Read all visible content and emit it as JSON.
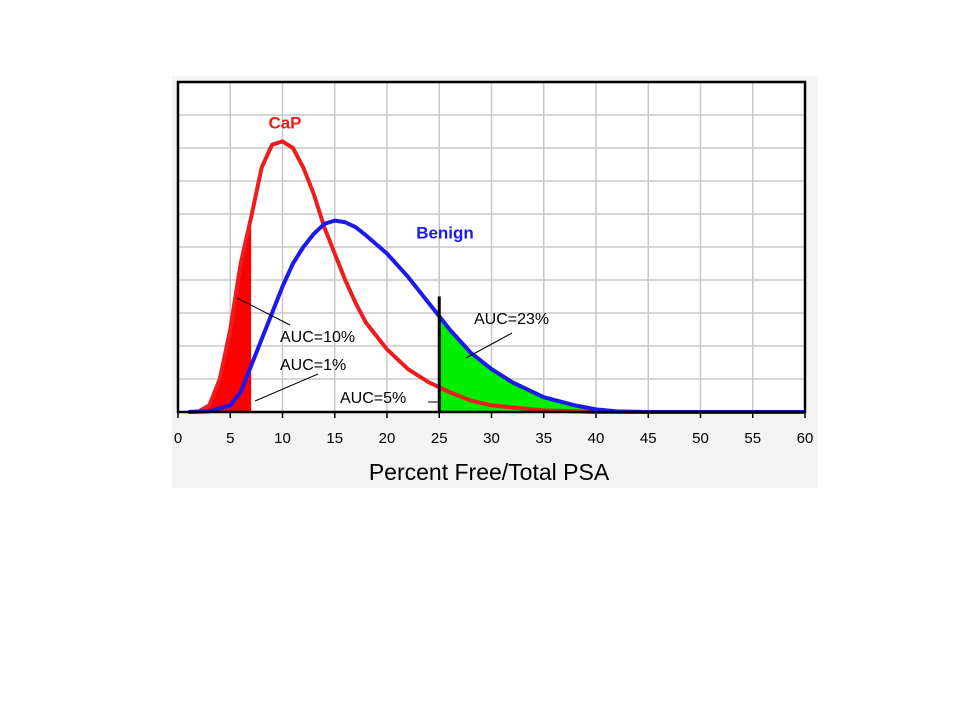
{
  "chart_data": {
    "type": "line",
    "xlabel": "Percent Free/Total PSA",
    "xlim": [
      0,
      60
    ],
    "xticks": [
      0,
      5,
      10,
      15,
      20,
      25,
      30,
      35,
      40,
      45,
      50,
      55,
      60
    ],
    "ylim": [
      0,
      10
    ],
    "grid": true,
    "cutoff": {
      "x": 25,
      "height": 3.5
    },
    "series": [
      {
        "name": "CaP",
        "color": "#ee1c1c",
        "fill": "#ff0000",
        "fill_range": [
          1,
          7
        ],
        "x": [
          1,
          2,
          3,
          4,
          5,
          6,
          7,
          8,
          9,
          10,
          11,
          12,
          13,
          14,
          15,
          16,
          17,
          18,
          20,
          22,
          24,
          26,
          28,
          30,
          35,
          40,
          60
        ],
        "values": [
          0,
          0.02,
          0.2,
          1,
          2.5,
          4.5,
          5.9,
          7.4,
          8.1,
          8.2,
          8.0,
          7.4,
          6.6,
          5.6,
          4.8,
          4.0,
          3.3,
          2.7,
          1.9,
          1.3,
          0.9,
          0.6,
          0.35,
          0.2,
          0.05,
          0,
          0
        ]
      },
      {
        "name": "Benign",
        "color": "#1a1aee",
        "fill": "#00ee00",
        "fill_range": [
          25,
          60
        ],
        "x": [
          1,
          3,
          5,
          6,
          7,
          8,
          9,
          10,
          11,
          12,
          13,
          14,
          15,
          16,
          17,
          18,
          20,
          22,
          24,
          25,
          26,
          28,
          30,
          32,
          35,
          38,
          40,
          42,
          45,
          60
        ],
        "values": [
          0,
          0.02,
          0.2,
          0.6,
          1.4,
          2.2,
          3.0,
          3.8,
          4.5,
          5.0,
          5.4,
          5.7,
          5.8,
          5.75,
          5.6,
          5.35,
          4.8,
          4.1,
          3.3,
          2.9,
          2.5,
          1.8,
          1.3,
          0.9,
          0.45,
          0.2,
          0.08,
          0.02,
          0,
          0
        ]
      }
    ],
    "annotations": [
      "AUC=10%",
      "AUC=1%",
      "AUC=5%",
      "AUC=23%"
    ]
  }
}
